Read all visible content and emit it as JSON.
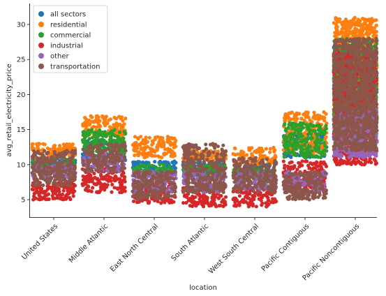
{
  "chart_data": {
    "type": "scatter",
    "subtype": "swarm",
    "xlabel": "location",
    "ylabel": "avg_retail_electricity_price",
    "categories": [
      "United States",
      "Middle Atlantic",
      "East North Central",
      "South Atlantic",
      "West South Central",
      "Pacific Contiguous",
      "Pacific Noncontiguous"
    ],
    "ylim": [
      2.5,
      32.5
    ],
    "yticks": [
      5,
      10,
      15,
      20,
      25,
      30
    ],
    "grid": false,
    "legend_position": "top-left",
    "series": [
      {
        "name": "all sectors",
        "color": "#1f77b4",
        "ranges": [
          [
            9.0,
            11.0
          ],
          [
            10.5,
            13.5
          ],
          [
            8.5,
            10.5
          ],
          [
            8.5,
            10.5
          ],
          [
            8.0,
            10.0
          ],
          [
            11.0,
            14.5
          ],
          [
            15.0,
            27.0
          ]
        ]
      },
      {
        "name": "residential",
        "color": "#ff7f0e",
        "ranges": [
          [
            11.0,
            13.0
          ],
          [
            14.0,
            17.0
          ],
          [
            11.0,
            14.0
          ],
          [
            10.5,
            12.0
          ],
          [
            10.0,
            12.5
          ],
          [
            11.5,
            17.5
          ],
          [
            16.0,
            31.0
          ]
        ]
      },
      {
        "name": "commercial",
        "color": "#2ca02c",
        "ranges": [
          [
            9.5,
            10.8
          ],
          [
            11.5,
            15.0
          ],
          [
            8.5,
            10.0
          ],
          [
            8.5,
            10.0
          ],
          [
            7.5,
            9.5
          ],
          [
            11.0,
            16.0
          ],
          [
            14.0,
            28.0
          ]
        ]
      },
      {
        "name": "industrial",
        "color": "#d62728",
        "ranges": [
          [
            5.0,
            7.5
          ],
          [
            6.0,
            9.5
          ],
          [
            4.5,
            7.5
          ],
          [
            4.0,
            7.0
          ],
          [
            4.0,
            7.0
          ],
          [
            6.0,
            10.5
          ],
          [
            10.0,
            26.0
          ]
        ]
      },
      {
        "name": "other",
        "color": "#9467bd",
        "ranges": [
          [
            8.0,
            10.0
          ],
          [
            9.0,
            11.5
          ],
          [
            6.0,
            9.0
          ],
          [
            6.0,
            9.0
          ],
          [
            6.5,
            9.0
          ],
          [
            6.0,
            9.0
          ],
          [
            11.0,
            18.0
          ]
        ]
      },
      {
        "name": "transportation",
        "color": "#8c564b",
        "ranges": [
          [
            7.0,
            12.0
          ],
          [
            9.0,
            13.0
          ],
          [
            5.0,
            9.0
          ],
          [
            6.0,
            13.0
          ],
          [
            6.0,
            11.0
          ],
          [
            5.0,
            9.0
          ],
          [
            12.0,
            28.0
          ]
        ]
      }
    ]
  }
}
